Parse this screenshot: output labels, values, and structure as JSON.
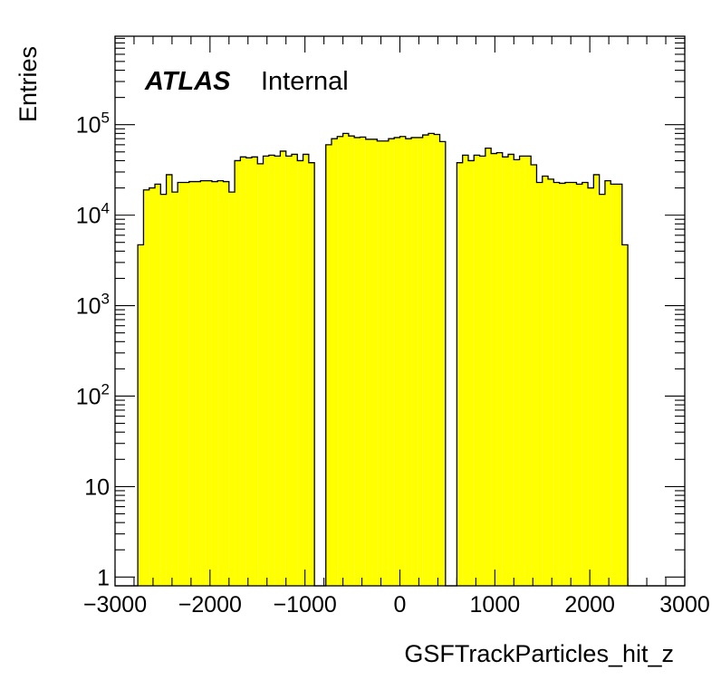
{
  "chart_data": {
    "type": "histogram",
    "xlabel": "GSFTrackParticles_hit_z",
    "ylabel": "Entries",
    "label_bold": "ATLAS",
    "label_status": "Internal",
    "xlim": [
      -3000,
      3000
    ],
    "ylim": [
      0.8,
      950000
    ],
    "yscale": "log",
    "x_ticks": [
      {
        "value": -3000,
        "label": "−3000"
      },
      {
        "value": -2000,
        "label": "−2000"
      },
      {
        "value": -1000,
        "label": "−1000"
      },
      {
        "value": 0,
        "label": "0"
      },
      {
        "value": 1000,
        "label": "1000"
      },
      {
        "value": 2000,
        "label": "2000"
      },
      {
        "value": 3000,
        "label": "3000"
      }
    ],
    "y_ticks": [
      {
        "value": 1,
        "base": "1",
        "exp": ""
      },
      {
        "value": 10,
        "base": "10",
        "exp": ""
      },
      {
        "value": 100,
        "base": "10",
        "exp": "2"
      },
      {
        "value": 1000,
        "base": "10",
        "exp": "3"
      },
      {
        "value": 10000,
        "base": "10",
        "exp": "4"
      },
      {
        "value": 100000,
        "base": "10",
        "exp": "5"
      }
    ],
    "fill_color": "#ffff00",
    "line_color": "#000000",
    "bin_width": 60,
    "bin_low_edges": [
      -3000,
      -2940,
      -2880,
      -2820,
      -2760,
      -2700,
      -2640,
      -2580,
      -2520,
      -2460,
      -2400,
      -2340,
      -2280,
      -2220,
      -2160,
      -2100,
      -2040,
      -1980,
      -1920,
      -1860,
      -1800,
      -1740,
      -1680,
      -1620,
      -1560,
      -1500,
      -1440,
      -1380,
      -1320,
      -1260,
      -1200,
      -1140,
      -1080,
      -1020,
      -960,
      -900,
      -840,
      -780,
      -720,
      -660,
      -600,
      -540,
      -480,
      -420,
      -360,
      -300,
      -240,
      -180,
      -120,
      -60,
      0,
      60,
      120,
      180,
      240,
      300,
      360,
      420,
      480,
      540,
      600,
      660,
      720,
      780,
      840,
      900,
      960,
      1020,
      1080,
      1140,
      1200,
      1260,
      1320,
      1380,
      1440,
      1500,
      1560,
      1620,
      1680,
      1740,
      1800,
      1860,
      1920,
      1980,
      2040,
      2100,
      2160,
      2220,
      2280,
      2340,
      2400,
      2460,
      2520,
      2580,
      2640,
      2700,
      2760,
      2820,
      2880,
      2940
    ],
    "values": [
      0,
      0,
      0,
      0,
      4700,
      19000,
      20000,
      22000,
      17000,
      28000,
      18000,
      23000,
      23000,
      23500,
      23500,
      24000,
      24000,
      23500,
      24000,
      23500,
      18000,
      40000,
      44000,
      43000,
      44000,
      37000,
      45000,
      46000,
      45000,
      51000,
      45000,
      47000,
      40000,
      47000,
      38000,
      0,
      0,
      60000,
      70000,
      74000,
      80000,
      75000,
      72000,
      73000,
      69000,
      69000,
      66000,
      66000,
      70000,
      72000,
      74000,
      70000,
      72000,
      72000,
      77000,
      80000,
      78000,
      65000,
      0,
      0,
      38000,
      46000,
      40000,
      46000,
      45000,
      55000,
      48000,
      49000,
      44000,
      47000,
      41000,
      45000,
      45000,
      36000,
      23000,
      27000,
      25000,
      23000,
      22500,
      23000,
      23000,
      22000,
      23000,
      20000,
      28000,
      17000,
      24000,
      22000,
      22000,
      4700,
      0,
      0,
      0,
      0,
      0,
      0,
      0,
      0,
      0,
      0
    ]
  }
}
